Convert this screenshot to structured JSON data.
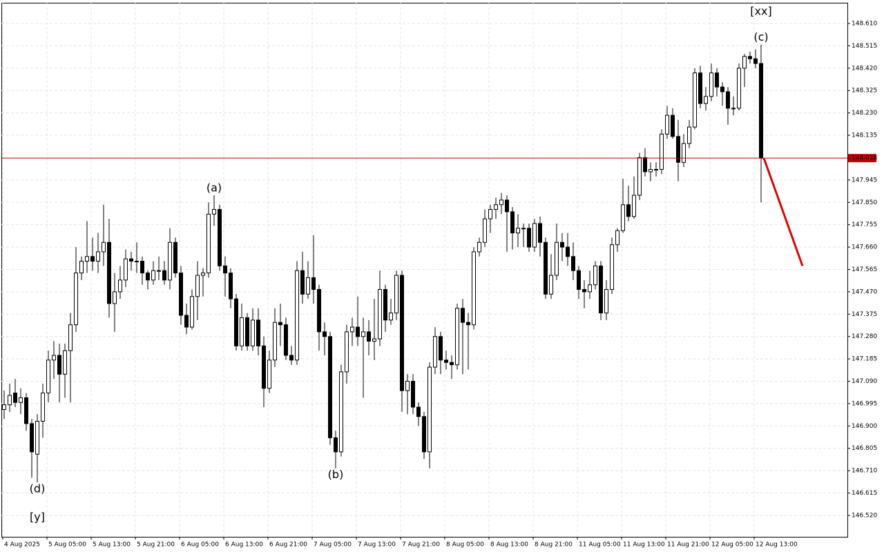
{
  "chart_data": {
    "type": "candlestick",
    "categories": [
      "4 Aug 2025",
      null,
      null,
      null,
      null,
      null,
      null,
      null,
      "5 Aug 05:00",
      null,
      null,
      null,
      null,
      null,
      null,
      null,
      "5 Aug 13:00",
      null,
      null,
      null,
      null,
      null,
      null,
      null,
      "5 Aug 21:00",
      null,
      null,
      null,
      null,
      null,
      null,
      null,
      "6 Aug 05:00",
      null,
      null,
      null,
      null,
      null,
      null,
      null,
      "6 Aug 13:00",
      null,
      null,
      null,
      null,
      null,
      null,
      null,
      "6 Aug 21:00",
      null,
      null,
      null,
      null,
      null,
      null,
      null,
      "7 Aug 05:00",
      null,
      null,
      null,
      null,
      null,
      null,
      null,
      "7 Aug 13:00",
      null,
      null,
      null,
      null,
      null,
      null,
      null,
      "7 Aug 21:00",
      null,
      null,
      null,
      null,
      null,
      null,
      null,
      "8 Aug 05:00",
      null,
      null,
      null,
      null,
      null,
      null,
      null,
      "8 Aug 13:00",
      null,
      null,
      null,
      null,
      null,
      null,
      null,
      "8 Aug 21:00",
      null,
      null,
      null,
      null,
      null,
      null,
      null,
      "11 Aug 05:00",
      null,
      null,
      null,
      null,
      null,
      null,
      null,
      "11 Aug 13:00",
      null,
      null,
      null,
      null,
      null,
      null,
      null,
      "11 Aug 21:00",
      null,
      null,
      null,
      null,
      null,
      null,
      null,
      "12 Aug 05:00",
      null,
      null,
      null,
      null,
      null,
      null,
      null,
      "12 Aug 13:00",
      null
    ],
    "open": [
      146.97,
      146.99,
      147.04,
      147.0,
      147.02,
      146.91,
      146.78,
      146.92,
      147.04,
      147.18,
      147.2,
      147.12,
      147.22,
      147.33,
      147.55,
      147.6,
      147.62,
      147.6,
      147.64,
      147.68,
      147.42,
      147.47,
      147.52,
      147.61,
      147.6,
      147.6,
      147.55,
      147.52,
      147.56,
      147.56,
      147.52,
      147.68,
      147.55,
      147.37,
      147.32,
      147.45,
      147.54,
      147.55,
      147.8,
      147.82,
      147.58,
      147.55,
      147.44,
      147.24,
      147.36,
      147.24,
      147.35,
      147.24,
      147.06,
      147.18,
      147.34,
      147.33,
      147.2,
      147.18,
      147.56,
      147.46,
      147.53,
      147.48,
      147.3,
      147.28,
      146.85,
      146.79,
      147.13,
      147.3,
      147.32,
      147.28,
      147.3,
      147.26,
      147.27,
      147.48,
      147.35,
      147.38,
      147.54,
      147.05,
      147.09,
      146.98,
      146.94,
      146.79,
      147.15,
      147.28,
      147.18,
      147.17,
      147.16,
      147.4,
      147.34,
      147.33,
      147.64,
      147.68,
      147.78,
      147.82,
      147.84,
      147.86,
      147.81,
      147.72,
      147.74,
      147.74,
      147.66,
      147.76,
      147.68,
      147.46,
      147.54,
      147.68,
      147.66,
      147.62,
      147.56,
      147.48,
      147.47,
      147.5,
      147.58,
      147.38,
      147.48,
      147.67,
      147.73,
      147.84,
      147.79,
      147.88,
      148.04,
      147.98,
      147.99,
      147.99,
      148.14,
      148.22,
      148.13,
      148.02,
      148.1,
      148.17,
      148.4,
      148.27,
      148.3,
      148.4,
      148.34,
      148.32,
      148.25,
      148.25,
      148.42,
      148.47,
      148.46,
      148.44
    ],
    "high": [
      147.05,
      147.08,
      147.1,
      147.06,
      147.04,
      146.93,
      146.95,
      147.08,
      147.22,
      147.26,
      147.25,
      147.25,
      147.38,
      147.66,
      147.62,
      147.77,
      147.7,
      147.72,
      147.84,
      147.78,
      147.55,
      147.58,
      147.65,
      147.64,
      147.68,
      147.62,
      147.56,
      147.6,
      147.62,
      147.6,
      147.74,
      147.7,
      147.58,
      147.42,
      147.48,
      147.6,
      147.57,
      147.85,
      147.88,
      147.84,
      147.62,
      147.57,
      147.46,
      147.42,
      147.38,
      147.4,
      147.4,
      147.28,
      147.22,
      147.4,
      147.42,
      147.36,
      147.24,
      147.6,
      147.64,
      147.6,
      147.71,
      147.5,
      147.34,
      147.3,
      146.88,
      147.16,
      147.33,
      147.36,
      147.45,
      147.36,
      147.35,
      147.44,
      147.56,
      147.5,
      147.44,
      147.56,
      147.56,
      147.12,
      147.12,
      147.0,
      146.96,
      147.17,
      147.32,
      147.3,
      147.22,
      147.2,
      147.42,
      147.44,
      147.38,
      147.66,
      147.7,
      147.82,
      147.84,
      147.87,
      147.89,
      147.88,
      147.83,
      147.8,
      147.76,
      147.76,
      147.78,
      147.79,
      147.7,
      147.63,
      147.76,
      147.72,
      147.72,
      147.68,
      147.58,
      147.52,
      147.56,
      147.6,
      147.6,
      147.52,
      147.7,
      147.74,
      147.95,
      147.92,
      147.96,
      148.06,
      148.08,
      148.02,
      148.02,
      148.16,
      148.26,
      148.25,
      148.2,
      148.14,
      148.2,
      148.42,
      148.43,
      148.34,
      148.44,
      148.42,
      148.36,
      148.34,
      148.3,
      148.44,
      148.48,
      148.49,
      148.5,
      148.52
    ],
    "low": [
      146.93,
      146.96,
      146.98,
      146.95,
      146.88,
      146.68,
      146.66,
      146.85,
      147.0,
      147.1,
      147.0,
      147.02,
      147.0,
      147.3,
      147.52,
      147.55,
      147.56,
      147.55,
      147.58,
      147.36,
      147.3,
      147.44,
      147.49,
      147.56,
      147.55,
      147.5,
      147.48,
      147.5,
      147.52,
      147.5,
      147.48,
      147.53,
      147.33,
      147.29,
      147.31,
      147.35,
      147.45,
      147.53,
      147.75,
      147.56,
      147.45,
      147.4,
      147.22,
      147.22,
      147.22,
      147.22,
      147.2,
      146.98,
      147.04,
      147.15,
      147.24,
      147.18,
      147.16,
      147.16,
      147.42,
      147.44,
      147.42,
      147.22,
      147.2,
      146.82,
      146.72,
      146.77,
      147.08,
      147.24,
      147.24,
      147.02,
      147.2,
      147.18,
      147.24,
      147.3,
      147.33,
      147.35,
      146.96,
      146.95,
      146.95,
      146.9,
      146.76,
      146.72,
      147.12,
      147.12,
      147.14,
      147.1,
      147.14,
      147.12,
      147.14,
      147.31,
      147.62,
      147.66,
      147.72,
      147.78,
      147.8,
      147.64,
      147.65,
      147.66,
      147.66,
      147.64,
      147.64,
      147.62,
      147.44,
      147.44,
      147.52,
      147.6,
      147.58,
      147.52,
      147.44,
      147.4,
      147.44,
      147.48,
      147.35,
      147.35,
      147.46,
      147.64,
      147.72,
      147.77,
      147.78,
      147.86,
      147.96,
      147.94,
      147.96,
      147.97,
      148.12,
      148.12,
      147.94,
      148.0,
      148.08,
      148.16,
      148.25,
      148.24,
      148.28,
      148.3,
      148.26,
      148.18,
      148.22,
      148.24,
      148.34,
      148.44,
      148.42,
      147.85
    ],
    "close": [
      146.99,
      147.03,
      147.0,
      147.02,
      146.91,
      146.79,
      146.92,
      147.04,
      147.18,
      147.2,
      147.12,
      147.22,
      147.33,
      147.55,
      147.6,
      147.62,
      147.6,
      147.64,
      147.68,
      147.42,
      147.47,
      147.52,
      147.61,
      147.6,
      147.6,
      147.55,
      147.52,
      147.56,
      147.56,
      147.52,
      147.68,
      147.55,
      147.37,
      147.32,
      147.45,
      147.54,
      147.55,
      147.8,
      147.82,
      147.58,
      147.55,
      147.44,
      147.24,
      147.36,
      147.24,
      147.35,
      147.24,
      147.06,
      147.18,
      147.34,
      147.33,
      147.2,
      147.18,
      147.56,
      147.46,
      147.53,
      147.48,
      147.3,
      147.28,
      146.85,
      146.79,
      147.13,
      147.3,
      147.32,
      147.28,
      147.3,
      147.26,
      147.27,
      147.48,
      147.35,
      147.38,
      147.54,
      147.05,
      147.09,
      146.98,
      146.94,
      146.79,
      147.15,
      147.28,
      147.18,
      147.17,
      147.16,
      147.4,
      147.34,
      147.33,
      147.64,
      147.68,
      147.78,
      147.82,
      147.84,
      147.86,
      147.81,
      147.72,
      147.74,
      147.74,
      147.66,
      147.76,
      147.68,
      147.46,
      147.54,
      147.68,
      147.66,
      147.62,
      147.56,
      147.48,
      147.47,
      147.5,
      147.58,
      147.38,
      147.48,
      147.67,
      147.73,
      147.84,
      147.79,
      147.88,
      148.04,
      147.98,
      147.99,
      147.99,
      148.14,
      148.22,
      148.13,
      148.02,
      148.1,
      148.17,
      148.4,
      148.27,
      148.3,
      148.4,
      148.34,
      148.32,
      148.25,
      148.25,
      148.42,
      148.47,
      148.46,
      148.44,
      148.038
    ],
    "up_color": "#ffffff",
    "down_color": "#000000",
    "wick_color": "#000000",
    "ylim": [
      146.429,
      148.698
    ],
    "yticks": [
      {
        "value": 148.61,
        "label": "148.610"
      },
      {
        "value": 148.515,
        "label": "148.515"
      },
      {
        "value": 148.42,
        "label": "148.420"
      },
      {
        "value": 148.325,
        "label": "148.325"
      },
      {
        "value": 148.23,
        "label": "148.230"
      },
      {
        "value": 148.135,
        "label": "148.135"
      },
      {
        "value": 147.945,
        "label": "147.945"
      },
      {
        "value": 147.85,
        "label": "147.850"
      },
      {
        "value": 147.755,
        "label": "147.755"
      },
      {
        "value": 147.66,
        "label": "147.660"
      },
      {
        "value": 147.565,
        "label": "147.565"
      },
      {
        "value": 147.47,
        "label": "147.470"
      },
      {
        "value": 147.375,
        "label": "147.375"
      },
      {
        "value": 147.28,
        "label": "147.280"
      },
      {
        "value": 147.185,
        "label": "147.185"
      },
      {
        "value": 147.09,
        "label": "147.090"
      },
      {
        "value": 146.995,
        "label": "146.995"
      },
      {
        "value": 146.9,
        "label": "146.900"
      },
      {
        "value": 146.805,
        "label": "146.805"
      },
      {
        "value": 146.71,
        "label": "146.710"
      },
      {
        "value": 146.615,
        "label": "146.615"
      },
      {
        "value": 146.52,
        "label": "146.520"
      }
    ],
    "grid": true,
    "price_line": {
      "value": 148.038,
      "label": "148.038",
      "color": "#c00000"
    },
    "projection": {
      "values": [
        148.038,
        147.58
      ],
      "color": "#e00000"
    },
    "annotations": [
      {
        "text": "(d)",
        "index": 6,
        "value": 146.66,
        "position": "below",
        "color": "#2a2ad0"
      },
      {
        "text": "[y]",
        "index": 6,
        "value": 146.54,
        "position": "below",
        "color": "#3cc03c"
      },
      {
        "text": "(a)",
        "index": 38,
        "value": 147.88,
        "position": "above",
        "color": "#2a2ad0"
      },
      {
        "text": "(b)",
        "index": 60,
        "value": 146.72,
        "position": "below",
        "color": "#2a2ad0"
      },
      {
        "text": "(c)",
        "index": 137,
        "value": 148.52,
        "position": "above",
        "color": "#2a2ad0"
      },
      {
        "text": "[xx]",
        "index": 137,
        "value": 148.63,
        "position": "above",
        "color": "#3cc03c"
      }
    ]
  }
}
